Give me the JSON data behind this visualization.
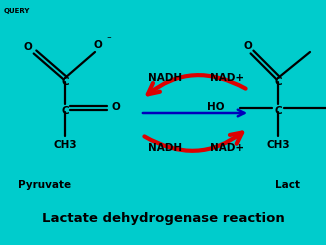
{
  "bg_color": "#00cccc",
  "text_color": "#000000",
  "title": "Lactate dehydrogenase reaction",
  "title_fontsize": 9.5,
  "query_label": "QUERY",
  "query_fontsize": 5,
  "pyruvate_label": "Pyruvate",
  "lactate_label": "Lact",
  "label_fontsize": 7.5,
  "nadh_top_left": "NADH",
  "nad_top_right": "NAD+",
  "nadh_bot_left": "NADH",
  "nad_bot_right": "NAD+",
  "cofactor_fontsize": 7.5,
  "arrow_color_red": "#dd0000",
  "arrow_color_blue": "#0000bb",
  "molecule_lw": 1.6,
  "mol_fontsize": 7.5
}
